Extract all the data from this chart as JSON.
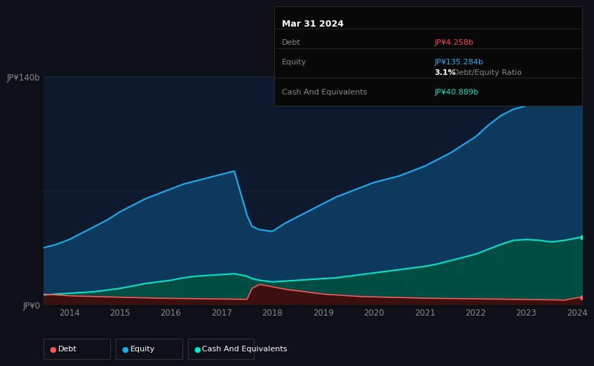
{
  "background_color": "#0d1117",
  "plot_bg_color": "#0d1a2e",
  "title_box": {
    "date": "Mar 31 2024",
    "debt_label": "Debt",
    "debt_value": "JP¥4.258b",
    "debt_color": "#ff4444",
    "equity_label": "Equity",
    "equity_value": "JP¥135.284b",
    "equity_color": "#1ab0f5",
    "ratio_bold": "3.1%",
    "ratio_text": " Debt/Equity Ratio",
    "cash_label": "Cash And Equivalents",
    "cash_value": "JP¥40.889b",
    "cash_color": "#00e5cc",
    "box_bg": "#080808",
    "box_border": "#2a2a2a",
    "label_color": "#888888",
    "ratio_color": "#ffffff"
  },
  "ylim": [
    0,
    140
  ],
  "ytick_labels": [
    "JP¥0",
    "JP¥140b"
  ],
  "grid_color": "#1a2535",
  "axis_label_color": "#888888",
  "years": [
    2013.5,
    2013.75,
    2014.0,
    2014.25,
    2014.5,
    2014.75,
    2015.0,
    2015.25,
    2015.5,
    2015.75,
    2016.0,
    2016.25,
    2016.5,
    2016.75,
    2017.0,
    2017.25,
    2017.5,
    2017.6,
    2017.75,
    2018.0,
    2018.25,
    2018.5,
    2018.75,
    2019.0,
    2019.25,
    2019.5,
    2019.75,
    2020.0,
    2020.25,
    2020.5,
    2020.75,
    2021.0,
    2021.25,
    2021.5,
    2021.75,
    2022.0,
    2022.25,
    2022.5,
    2022.75,
    2023.0,
    2023.25,
    2023.5,
    2023.75,
    2024.0,
    2024.1
  ],
  "equity": [
    35,
    37,
    40,
    44,
    48,
    52,
    57,
    61,
    65,
    68,
    71,
    74,
    76,
    78,
    80,
    82,
    55,
    48,
    46,
    45,
    50,
    54,
    58,
    62,
    66,
    69,
    72,
    75,
    77,
    79,
    82,
    85,
    89,
    93,
    98,
    103,
    110,
    116,
    120,
    122,
    124,
    127,
    131,
    135,
    136
  ],
  "cash": [
    6,
    6.5,
    7,
    7.5,
    8,
    9,
    10,
    11.5,
    13,
    14,
    15,
    16.5,
    17.5,
    18,
    18.5,
    19,
    17.5,
    16,
    15,
    14,
    14.5,
    15,
    15.5,
    16,
    16.5,
    17.5,
    18.5,
    19.5,
    20.5,
    21.5,
    22.5,
    23.5,
    25,
    27,
    29,
    31,
    34,
    37,
    39.5,
    40,
    39.5,
    38.5,
    39.5,
    41,
    41.5
  ],
  "debt": [
    6.5,
    6,
    5.5,
    5.2,
    5,
    4.8,
    4.6,
    4.4,
    4.2,
    4.0,
    3.9,
    3.8,
    3.7,
    3.6,
    3.5,
    3.4,
    3.3,
    10,
    12.5,
    11,
    9.5,
    8.5,
    7.5,
    6.5,
    6,
    5.5,
    5.0,
    4.8,
    4.6,
    4.4,
    4.2,
    4.0,
    3.9,
    3.8,
    3.7,
    3.6,
    3.5,
    3.4,
    3.3,
    3.2,
    3.1,
    3.0,
    2.8,
    4.258,
    4.5
  ],
  "equity_color": "#1ab0f5",
  "equity_fill": "#0d3a5c",
  "cash_color": "#00e5cc",
  "cash_fill": "#004d44",
  "debt_color": "#ff5555",
  "debt_fill": "#3d1010",
  "xtick_positions": [
    2014,
    2015,
    2016,
    2017,
    2018,
    2019,
    2020,
    2021,
    2022,
    2023,
    2024
  ],
  "xtick_labels": [
    "2014",
    "2015",
    "2016",
    "2017",
    "2018",
    "2019",
    "2020",
    "2021",
    "2022",
    "2023",
    "2024"
  ],
  "legend_items": [
    {
      "label": "Debt",
      "color": "#ff5555"
    },
    {
      "label": "Equity",
      "color": "#1ab0f5"
    },
    {
      "label": "Cash And Equivalents",
      "color": "#00e5cc"
    }
  ]
}
